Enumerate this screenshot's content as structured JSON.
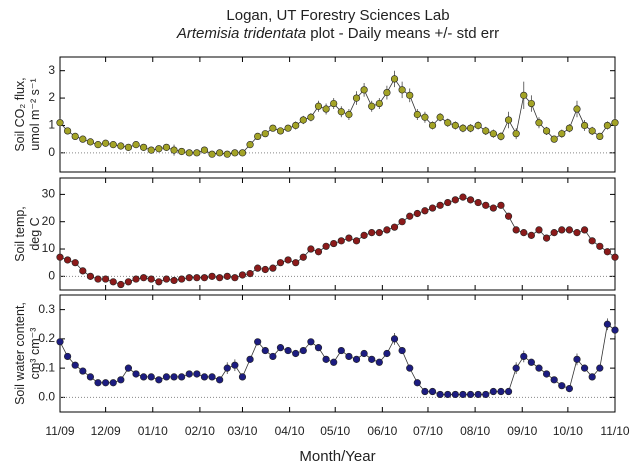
{
  "chart_data": [
    {
      "type": "line",
      "title": "Logan, UT Forestry Sciences Lab",
      "subtitle_italic": "Artemisia tridentata",
      "subtitle": " plot - Daily means +/- std err",
      "ylabel": [
        "Soil CO₂ flux,",
        "umol m⁻² s⁻¹"
      ],
      "color": "#a3a326",
      "zero_line": true,
      "xlim": [
        0,
        365
      ],
      "xticks": [
        0,
        30,
        61,
        92,
        120,
        151,
        181,
        212,
        242,
        273,
        304,
        334,
        365
      ],
      "ylim": [
        -0.7,
        3.5
      ],
      "yticks": [
        0,
        1,
        2,
        3
      ],
      "x": [
        0,
        5,
        10,
        15,
        20,
        25,
        30,
        35,
        40,
        45,
        50,
        55,
        60,
        65,
        70,
        75,
        80,
        85,
        90,
        95,
        100,
        105,
        110,
        115,
        120,
        125,
        130,
        135,
        140,
        145,
        150,
        155,
        160,
        165,
        170,
        175,
        180,
        185,
        190,
        195,
        200,
        205,
        210,
        215,
        220,
        225,
        230,
        235,
        240,
        245,
        250,
        255,
        260,
        265,
        270,
        275,
        280,
        285,
        290,
        295,
        300,
        305,
        310,
        315,
        320,
        325,
        330,
        335,
        340,
        345,
        350,
        355,
        360,
        365
      ],
      "values": [
        1.1,
        0.8,
        0.6,
        0.5,
        0.4,
        0.3,
        0.35,
        0.3,
        0.25,
        0.2,
        0.3,
        0.2,
        0.1,
        0.15,
        0.2,
        0.1,
        0.05,
        0.0,
        0.0,
        0.1,
        -0.05,
        0.0,
        -0.05,
        0.0,
        0.0,
        0.3,
        0.6,
        0.7,
        0.9,
        0.8,
        0.9,
        1.0,
        1.2,
        1.3,
        1.7,
        1.6,
        1.8,
        1.5,
        1.4,
        2.0,
        2.3,
        1.7,
        1.8,
        2.2,
        2.7,
        2.3,
        2.1,
        1.4,
        1.3,
        1.0,
        1.3,
        1.1,
        1.0,
        0.9,
        0.9,
        1.0,
        0.8,
        0.7,
        0.6,
        1.2,
        0.7,
        2.1,
        1.8,
        1.1,
        0.8,
        0.5,
        0.7,
        0.9,
        1.6,
        1.0,
        0.8,
        0.6,
        1.0,
        1.1
      ],
      "errors": [
        0.15,
        0.1,
        0.1,
        0.1,
        0.1,
        0.1,
        0.1,
        0.1,
        0.1,
        0.1,
        0.1,
        0.1,
        0.1,
        0.1,
        0.1,
        0.2,
        0.1,
        0.1,
        0.1,
        0.1,
        0.1,
        0.1,
        0.1,
        0.1,
        0.1,
        0.1,
        0.1,
        0.1,
        0.1,
        0.1,
        0.1,
        0.15,
        0.15,
        0.15,
        0.2,
        0.2,
        0.2,
        0.2,
        0.2,
        0.25,
        0.25,
        0.2,
        0.2,
        0.25,
        0.3,
        0.3,
        0.25,
        0.2,
        0.2,
        0.15,
        0.15,
        0.15,
        0.15,
        0.15,
        0.15,
        0.15,
        0.15,
        0.15,
        0.15,
        0.3,
        0.2,
        0.5,
        0.3,
        0.2,
        0.15,
        0.1,
        0.15,
        0.15,
        0.3,
        0.2,
        0.15,
        0.1,
        0.15,
        0.15
      ]
    },
    {
      "type": "line",
      "ylabel": [
        "Soil temp,",
        "deg C"
      ],
      "color": "#8b1a1a",
      "zero_line": true,
      "xlim": [
        0,
        365
      ],
      "xticks": [
        0,
        30,
        61,
        92,
        120,
        151,
        181,
        212,
        242,
        273,
        304,
        334,
        365
      ],
      "ylim": [
        -5,
        36
      ],
      "yticks": [
        0,
        10,
        20,
        30
      ],
      "x": [
        0,
        5,
        10,
        15,
        20,
        25,
        30,
        35,
        40,
        45,
        50,
        55,
        60,
        65,
        70,
        75,
        80,
        85,
        90,
        95,
        100,
        105,
        110,
        115,
        120,
        125,
        130,
        135,
        140,
        145,
        150,
        155,
        160,
        165,
        170,
        175,
        180,
        185,
        190,
        195,
        200,
        205,
        210,
        215,
        220,
        225,
        230,
        235,
        240,
        245,
        250,
        255,
        260,
        265,
        270,
        275,
        280,
        285,
        290,
        295,
        300,
        305,
        310,
        315,
        320,
        325,
        330,
        335,
        340,
        345,
        350,
        355,
        360,
        365
      ],
      "values": [
        7,
        6,
        5,
        2,
        0,
        -1,
        -1,
        -2,
        -3,
        -2,
        -1,
        -0.5,
        -1,
        -2,
        -1,
        -1.5,
        -1,
        -0.5,
        -0.5,
        -0.5,
        0,
        -0.5,
        0,
        -0.5,
        0.5,
        1,
        3,
        2.5,
        3,
        5,
        6,
        5,
        7,
        10,
        9,
        11,
        12,
        13,
        14,
        13,
        15,
        16,
        16,
        17,
        18,
        20,
        22,
        23,
        24,
        25,
        26,
        27,
        28,
        29,
        28,
        27,
        26,
        25,
        26,
        22,
        17,
        16,
        15,
        17,
        14,
        16,
        17,
        17,
        16,
        17,
        13,
        11,
        9,
        7
      ],
      "errors": [
        0.5,
        0.5,
        0.5,
        0.5,
        0.5,
        0.5,
        0.5,
        0.5,
        0.5,
        0.5,
        0.5,
        0.5,
        0.5,
        0.5,
        0.5,
        0.5,
        0.5,
        0.5,
        0.5,
        0.5,
        0.5,
        0.5,
        0.5,
        0.5,
        0.5,
        0.5,
        0.5,
        0.5,
        0.5,
        0.5,
        0.5,
        0.5,
        0.5,
        0.5,
        0.5,
        0.5,
        0.5,
        0.5,
        0.5,
        0.5,
        0.5,
        0.5,
        0.5,
        0.5,
        0.5,
        0.5,
        0.5,
        0.5,
        0.5,
        0.5,
        0.5,
        0.5,
        0.5,
        0.5,
        0.5,
        0.5,
        0.5,
        0.5,
        0.5,
        0.5,
        0.5,
        0.5,
        0.5,
        0.5,
        0.5,
        0.5,
        0.5,
        0.5,
        0.5,
        0.5,
        0.5,
        0.5,
        0.5,
        0.5
      ]
    },
    {
      "type": "line",
      "ylabel": [
        "Soil water content,",
        "cm³ cm⁻³"
      ],
      "xlabel": "Month/Year",
      "color": "#1c1c80",
      "zero_line": true,
      "xlim": [
        0,
        365
      ],
      "xticks": [
        {
          "value": 0,
          "label": "11/09"
        },
        {
          "value": 30,
          "label": "12/09"
        },
        {
          "value": 61,
          "label": "01/10"
        },
        {
          "value": 92,
          "label": "02/10"
        },
        {
          "value": 120,
          "label": "03/10"
        },
        {
          "value": 151,
          "label": "04/10"
        },
        {
          "value": 181,
          "label": "05/10"
        },
        {
          "value": 212,
          "label": "06/10"
        },
        {
          "value": 242,
          "label": "07/10"
        },
        {
          "value": 273,
          "label": "08/10"
        },
        {
          "value": 304,
          "label": "09/10"
        },
        {
          "value": 334,
          "label": "10/10"
        },
        {
          "value": 365,
          "label": "11/10"
        }
      ],
      "ylim": [
        -0.05,
        0.35
      ],
      "yticks": [
        {
          "value": 0,
          "label": "0.0"
        },
        0.1,
        0.2,
        0.3
      ],
      "x": [
        0,
        5,
        10,
        15,
        20,
        25,
        30,
        35,
        40,
        45,
        50,
        55,
        60,
        65,
        70,
        75,
        80,
        85,
        90,
        95,
        100,
        105,
        110,
        115,
        120,
        125,
        130,
        135,
        140,
        145,
        150,
        155,
        160,
        165,
        170,
        175,
        180,
        185,
        190,
        195,
        200,
        205,
        210,
        215,
        220,
        225,
        230,
        235,
        240,
        245,
        250,
        255,
        260,
        265,
        270,
        275,
        280,
        285,
        290,
        295,
        300,
        305,
        310,
        315,
        320,
        325,
        330,
        335,
        340,
        345,
        350,
        355,
        360,
        365
      ],
      "values": [
        0.19,
        0.14,
        0.11,
        0.09,
        0.07,
        0.05,
        0.05,
        0.05,
        0.06,
        0.1,
        0.08,
        0.07,
        0.07,
        0.06,
        0.07,
        0.07,
        0.07,
        0.08,
        0.08,
        0.07,
        0.07,
        0.06,
        0.1,
        0.11,
        0.07,
        0.13,
        0.19,
        0.16,
        0.14,
        0.17,
        0.16,
        0.15,
        0.16,
        0.19,
        0.17,
        0.13,
        0.12,
        0.16,
        0.14,
        0.13,
        0.15,
        0.13,
        0.12,
        0.15,
        0.2,
        0.16,
        0.1,
        0.05,
        0.02,
        0.02,
        0.01,
        0.01,
        0.01,
        0.01,
        0.01,
        0.01,
        0.01,
        0.02,
        0.02,
        0.02,
        0.1,
        0.14,
        0.12,
        0.1,
        0.08,
        0.06,
        0.04,
        0.03,
        0.13,
        0.1,
        0.07,
        0.1,
        0.25,
        0.23
      ],
      "errors": [
        0.005,
        0.005,
        0.005,
        0.005,
        0.005,
        0.005,
        0.005,
        0.005,
        0.005,
        0.01,
        0.005,
        0.005,
        0.005,
        0.005,
        0.005,
        0.005,
        0.005,
        0.005,
        0.005,
        0.005,
        0.005,
        0.005,
        0.02,
        0.02,
        0.005,
        0.01,
        0.01,
        0.01,
        0.005,
        0.01,
        0.005,
        0.005,
        0.005,
        0.01,
        0.01,
        0.005,
        0.005,
        0.01,
        0.005,
        0.005,
        0.01,
        0.005,
        0.005,
        0.01,
        0.02,
        0.01,
        0.005,
        0.005,
        0.005,
        0.005,
        0.005,
        0.005,
        0.005,
        0.005,
        0.005,
        0.005,
        0.005,
        0.005,
        0.005,
        0.005,
        0.02,
        0.02,
        0.01,
        0.005,
        0.005,
        0.005,
        0.005,
        0.005,
        0.02,
        0.01,
        0.005,
        0.01,
        0.02,
        0.02
      ]
    }
  ]
}
